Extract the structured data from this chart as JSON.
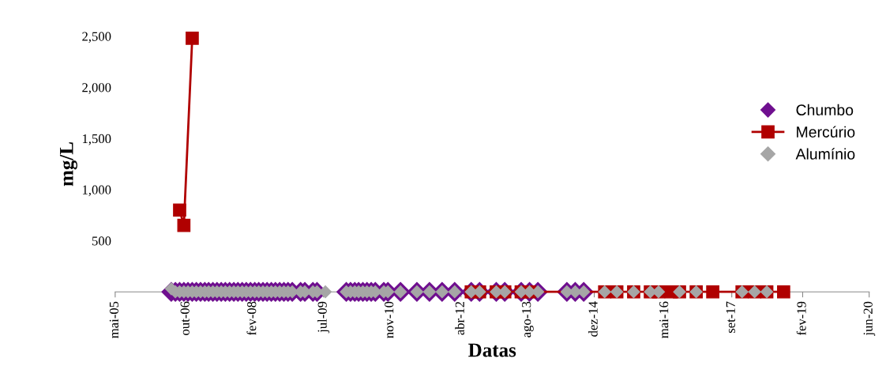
{
  "chart_data": {
    "type": "scatter",
    "xlabel": "Datas",
    "ylabel": "mg/L",
    "xlim": [
      "2005-05-01",
      "2020-06-01"
    ],
    "xticks": [
      {
        "value": "2005-05-01",
        "label": "mai-05"
      },
      {
        "value": "2006-10-01",
        "label": "out-06"
      },
      {
        "value": "2008-02-01",
        "label": "fev-08"
      },
      {
        "value": "2009-07-01",
        "label": "jul-09"
      },
      {
        "value": "2010-11-01",
        "label": "nov-10"
      },
      {
        "value": "2012-04-01",
        "label": "abr-12"
      },
      {
        "value": "2013-08-01",
        "label": "ago-13"
      },
      {
        "value": "2014-12-01",
        "label": "dez-14"
      },
      {
        "value": "2016-05-01",
        "label": "mai-16"
      },
      {
        "value": "2017-09-01",
        "label": "set-17"
      },
      {
        "value": "2019-02-01",
        "label": "fev-19"
      },
      {
        "value": "2020-06-01",
        "label": "jun-20"
      }
    ],
    "ylim": [
      0,
      2500
    ],
    "yticks": [
      {
        "value": 500,
        "label": "500"
      },
      {
        "value": 1000,
        "label": "1,000"
      },
      {
        "value": 1500,
        "label": "1,500"
      },
      {
        "value": 2000,
        "label": "2,000"
      },
      {
        "value": 2500,
        "label": "2,500"
      }
    ],
    "legend": "right",
    "grid": false,
    "series": [
      {
        "name": "Chumbo",
        "marker": "diamond",
        "color": "#6f0f8f",
        "x": [
          "2006-06",
          "2006-07",
          "2006-08",
          "2006-09",
          "2006-10",
          "2006-11",
          "2006-12",
          "2007-01",
          "2007-02",
          "2007-03",
          "2007-04",
          "2007-05",
          "2007-06",
          "2007-07",
          "2007-08",
          "2007-09",
          "2007-10",
          "2007-11",
          "2007-12",
          "2008-01",
          "2008-02",
          "2008-03",
          "2008-04",
          "2008-05",
          "2008-06",
          "2008-07",
          "2008-08",
          "2008-09",
          "2008-10",
          "2008-11",
          "2009-01",
          "2009-02",
          "2009-04",
          "2009-05",
          "2009-12",
          "2010-01",
          "2010-02",
          "2010-03",
          "2010-04",
          "2010-05",
          "2010-06",
          "2010-07",
          "2010-09",
          "2010-10",
          "2011-01",
          "2011-05",
          "2011-08",
          "2011-11",
          "2012-02",
          "2012-06",
          "2012-08",
          "2012-12",
          "2013-02",
          "2013-06",
          "2013-08",
          "2013-10",
          "2014-05",
          "2014-07",
          "2014-09"
        ],
        "values": [
          0,
          0,
          0,
          0,
          0,
          0,
          0,
          0,
          0,
          0,
          0,
          0,
          0,
          0,
          0,
          0,
          0,
          0,
          0,
          0,
          0,
          0,
          0,
          0,
          0,
          0,
          0,
          0,
          0,
          0,
          0,
          0,
          0,
          0,
          0,
          0,
          0,
          0,
          0,
          0,
          0,
          0,
          0,
          0,
          0,
          0,
          0,
          0,
          0,
          0,
          0,
          0,
          0,
          0,
          0,
          0,
          0,
          0,
          0
        ]
      },
      {
        "name": "Mercúrio",
        "type": "line",
        "marker": "square",
        "line_style": "solid",
        "color": "#b00000",
        "x": [
          "2006-08",
          "2006-09",
          "2006-11",
          "2009-06",
          "2012-06",
          "2012-08",
          "2012-12",
          "2013-02",
          "2013-06",
          "2013-08",
          "2015-02",
          "2015-05",
          "2015-09",
          "2016-01",
          "2016-03",
          "2016-06",
          "2016-08",
          "2016-12",
          "2017-04",
          "2017-11",
          "2018-02",
          "2018-05",
          "2018-09"
        ],
        "values": [
          800,
          650,
          2480,
          null,
          0,
          0,
          0,
          0,
          0,
          0,
          0,
          0,
          0,
          0,
          0,
          0,
          0,
          0,
          0,
          0,
          0,
          0,
          0
        ]
      },
      {
        "name": "Alumínio",
        "marker": "diamond",
        "color": "#a6a6a6",
        "x": [
          "2006-06",
          "2006-07",
          "2006-08",
          "2006-09",
          "2006-10",
          "2006-11",
          "2006-12",
          "2007-01",
          "2007-02",
          "2007-03",
          "2007-04",
          "2007-05",
          "2007-06",
          "2007-07",
          "2007-08",
          "2007-09",
          "2007-10",
          "2007-11",
          "2007-12",
          "2008-01",
          "2008-02",
          "2008-03",
          "2008-04",
          "2008-05",
          "2008-06",
          "2008-07",
          "2008-08",
          "2008-09",
          "2008-10",
          "2008-11",
          "2009-01",
          "2009-02",
          "2009-04",
          "2009-05",
          "2009-07",
          "2009-12",
          "2010-01",
          "2010-02",
          "2010-03",
          "2010-04",
          "2010-05",
          "2010-06",
          "2010-07",
          "2010-09",
          "2010-10",
          "2011-01",
          "2011-05",
          "2011-08",
          "2011-11",
          "2012-02",
          "2012-06",
          "2012-08",
          "2012-12",
          "2013-02",
          "2013-06",
          "2013-08",
          "2013-10",
          "2014-05",
          "2014-07",
          "2014-09",
          "2015-02",
          "2015-05",
          "2015-09",
          "2016-01",
          "2016-03",
          "2016-08",
          "2016-12",
          "2017-11",
          "2018-02",
          "2018-05"
        ],
        "values": [
          30,
          0,
          0,
          0,
          0,
          0,
          0,
          0,
          0,
          0,
          0,
          0,
          0,
          0,
          0,
          0,
          0,
          0,
          0,
          0,
          0,
          0,
          0,
          0,
          0,
          0,
          0,
          0,
          0,
          0,
          0,
          0,
          0,
          0,
          0,
          0,
          0,
          0,
          0,
          0,
          0,
          0,
          0,
          0,
          0,
          0,
          0,
          0,
          0,
          0,
          0,
          0,
          0,
          0,
          0,
          0,
          0,
          0,
          0,
          0,
          0,
          0,
          0,
          0,
          0,
          0,
          0,
          0,
          0,
          0
        ]
      }
    ]
  }
}
